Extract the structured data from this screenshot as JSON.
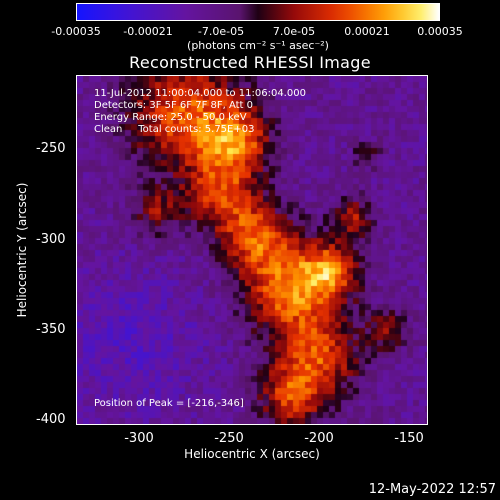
{
  "colorbar": {
    "ticks": [
      "-0.00035",
      "-0.00021",
      "-7.0e-05",
      "7.0e-05",
      "0.00021",
      "0.00035"
    ],
    "unit": "(photons cm⁻² s⁻¹ asec⁻²)"
  },
  "title": "Reconstructed RHESSI Image",
  "annotations": {
    "time": "11-Jul-2012 11:00:04.000 to 11:06:04.000",
    "detectors": "Detectors: 3F 5F 6F 7F 8F, Att 0",
    "energy": "Energy Range: 25.0 - 50.0 keV",
    "clean": "Clean     Total counts: 5.75E+03",
    "peak": "Position of Peak = [-216,-346]"
  },
  "axes": {
    "xlabel": "Heliocentric X (arcsec)",
    "ylabel": "Heliocentric Y (arcsec)",
    "xticks": [
      "-300",
      "-250",
      "-200",
      "-150"
    ],
    "yticks": [
      "-250",
      "-300",
      "-350",
      "-400"
    ]
  },
  "timestamp": "12-May-2022 12:57",
  "image_data": {
    "x_range": [
      -332,
      -137
    ],
    "y_range": [
      -403,
      -209
    ],
    "peak": [
      -216,
      -346
    ],
    "colormap": "red-temperature",
    "value_range": [
      -0.00035,
      0.00035
    ]
  }
}
